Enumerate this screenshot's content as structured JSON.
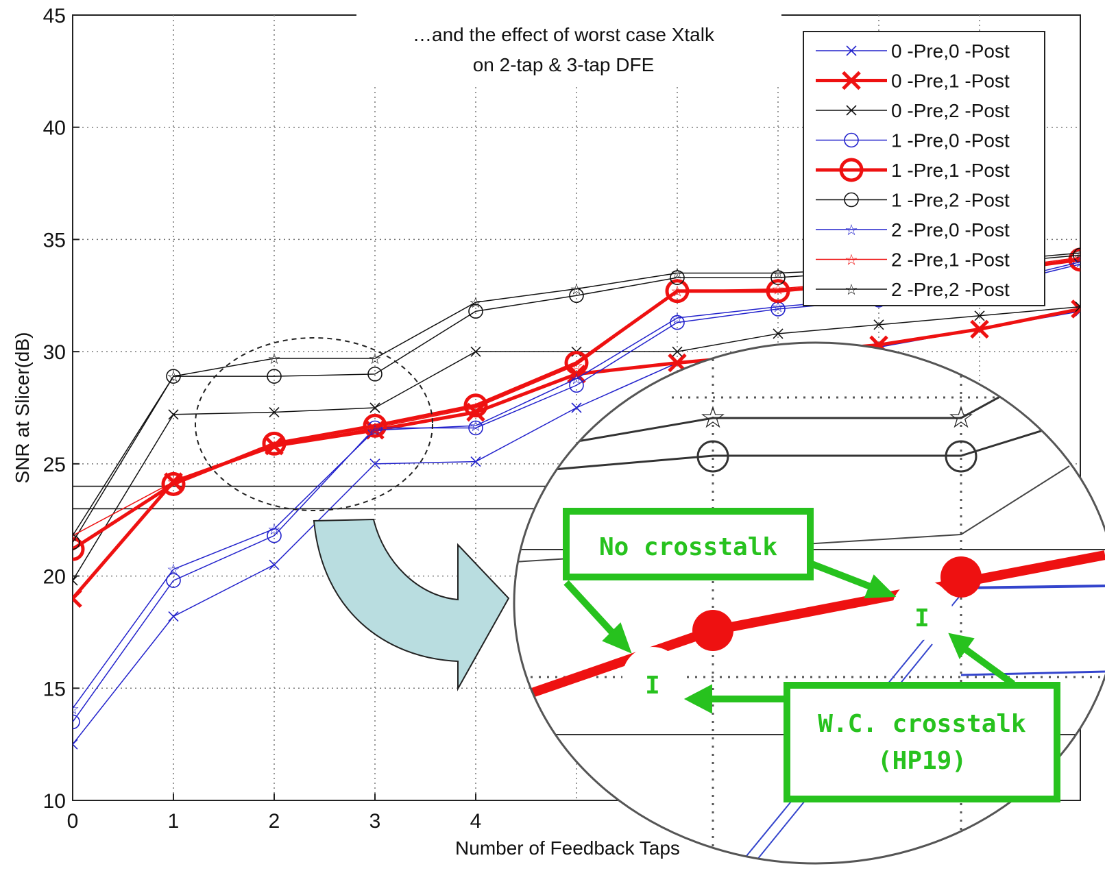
{
  "chart_data": {
    "type": "line",
    "title": "",
    "xlabel": "Number of Feedback Taps",
    "ylabel": "SNR at Slicer(dB)",
    "xlim": [
      0,
      10
    ],
    "ylim": [
      10,
      45
    ],
    "x_ticks": [
      "0",
      "1",
      "2",
      "3",
      "4"
    ],
    "y_ticks": [
      "10",
      "15",
      "20",
      "25",
      "30",
      "35",
      "40",
      "45"
    ],
    "grid": true,
    "legend_position": "top-right",
    "annotation": [
      "…and the effect of worst case Xtalk",
      "on 2-tap & 3-tap DFE"
    ],
    "reference_lines": [
      24,
      23
    ],
    "x": [
      0,
      1,
      2,
      3,
      4,
      5,
      6,
      7,
      8,
      9,
      10
    ],
    "series": [
      {
        "name": "0 -Pre,0 -Post",
        "color": "#2222cc",
        "marker": "x",
        "width": "thin",
        "values": [
          12.5,
          18.2,
          20.5,
          25.0,
          25.1,
          27.5,
          29.5,
          29.8,
          30.2,
          31.0,
          31.8
        ]
      },
      {
        "name": "0 -Pre,1 -Post",
        "color": "#ee1111",
        "marker": "x",
        "width": "thick",
        "values": [
          19.0,
          24.2,
          25.8,
          26.5,
          27.3,
          29.0,
          29.5,
          29.9,
          30.3,
          31.0,
          31.9
        ]
      },
      {
        "name": "0 -Pre,2 -Post",
        "color": "#111111",
        "marker": "x",
        "width": "thin",
        "values": [
          19.8,
          27.2,
          27.3,
          27.5,
          30.0,
          30.0,
          30.0,
          30.8,
          31.2,
          31.6,
          32.0
        ]
      },
      {
        "name": "1 -Pre,0 -Post",
        "color": "#2222cc",
        "marker": "o",
        "width": "thin",
        "values": [
          13.5,
          19.8,
          21.8,
          26.6,
          26.6,
          28.5,
          31.3,
          31.9,
          32.3,
          32.8,
          33.9
        ]
      },
      {
        "name": "1 -Pre,1 -Post",
        "color": "#ee1111",
        "marker": "o",
        "width": "thick",
        "values": [
          21.2,
          24.1,
          25.9,
          26.7,
          27.6,
          29.5,
          32.7,
          32.7,
          33.1,
          33.5,
          34.1
        ]
      },
      {
        "name": "1 -Pre,2 -Post",
        "color": "#111111",
        "marker": "o",
        "width": "thin",
        "values": [
          21.5,
          28.9,
          28.9,
          29.0,
          31.8,
          32.5,
          33.3,
          33.3,
          33.6,
          33.9,
          34.3
        ]
      },
      {
        "name": "2 -Pre,0 -Post",
        "color": "#2222cc",
        "marker": "star",
        "width": "thin",
        "values": [
          14.1,
          20.3,
          22.1,
          26.5,
          26.7,
          28.8,
          31.5,
          32.0,
          32.4,
          32.9,
          34.0
        ]
      },
      {
        "name": "2 -Pre,1 -Post",
        "color": "#ee1111",
        "marker": "star",
        "width": "thin",
        "values": [
          21.8,
          24.2,
          25.8,
          26.6,
          27.5,
          29.4,
          32.7,
          32.8,
          33.2,
          33.6,
          34.2
        ]
      },
      {
        "name": "2 -Pre,2 -Post",
        "color": "#111111",
        "marker": "star",
        "width": "thin",
        "values": [
          21.8,
          28.9,
          29.7,
          29.7,
          32.2,
          32.8,
          33.5,
          33.5,
          33.7,
          34.0,
          34.4
        ]
      }
    ]
  },
  "callouts": {
    "no_crosstalk": "No crosstalk",
    "wc_crosstalk_line1": "W.C. crosstalk",
    "wc_crosstalk_line2": "(HP19)",
    "marker_glyph": "I"
  },
  "colors": {
    "callout_green": "#27c21e",
    "arrow_fill": "#b9dde0",
    "zoom_grey": "#444444"
  }
}
